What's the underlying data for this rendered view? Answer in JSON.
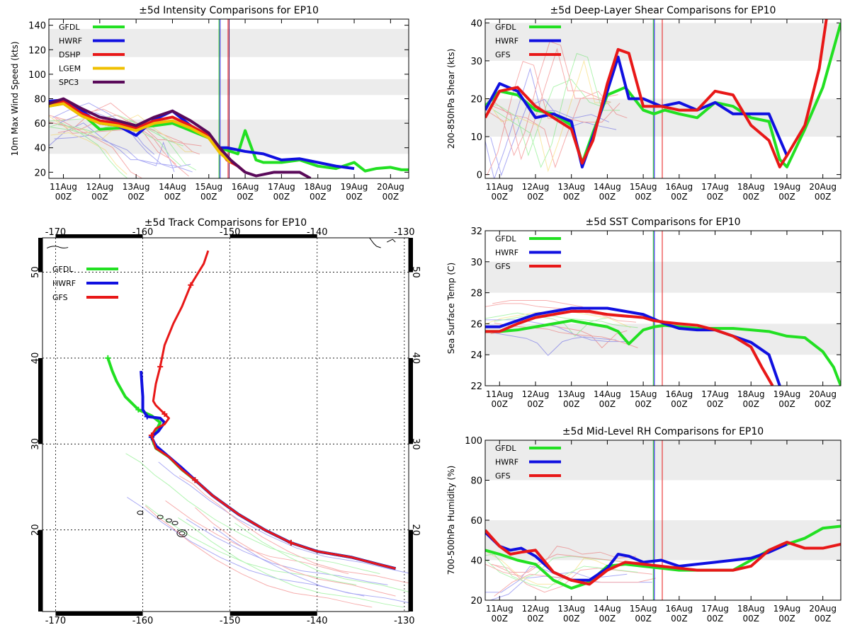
{
  "colors": {
    "GFDL": "#22e022",
    "HWRF": "#1010e0",
    "DSHP": "#e81818",
    "GFS": "#e81818",
    "LGEM": "#f0c000",
    "SPC3": "#5a0a5a",
    "band": "#ececec"
  },
  "date_ticks": [
    "11Aug",
    "12Aug",
    "13Aug",
    "14Aug",
    "15Aug",
    "16Aug",
    "17Aug",
    "18Aug",
    "19Aug",
    "20Aug"
  ],
  "hour_label": "00Z",
  "chart_data": [
    {
      "id": "intensity",
      "type": "line",
      "title": "±5d Intensity Comparisons for EP10",
      "ylabel": "10m Max Wind Speed (kts)",
      "xlim": [
        10.6,
        20.5
      ],
      "ylim": [
        15,
        145
      ],
      "yticks": [
        20,
        40,
        60,
        80,
        100,
        120,
        140
      ],
      "bands": [
        [
          35,
          63
        ],
        [
          83,
          96
        ],
        [
          114,
          137
        ]
      ],
      "vlines": [
        {
          "x": 15.28,
          "color": "#22c022"
        },
        {
          "x": 15.31,
          "color": "#1010e0"
        },
        {
          "x": 15.53,
          "color": "#e81818"
        },
        {
          "x": 15.56,
          "color": "#5a0a5a"
        }
      ],
      "legend": [
        "GFDL",
        "HWRF",
        "DSHP",
        "LGEM",
        "SPC3"
      ],
      "series": [
        {
          "name": "GFDL",
          "x": [
            10.6,
            11,
            11.5,
            12,
            12.5,
            13,
            13.5,
            14,
            14.5,
            15,
            15.3,
            15.5,
            15.8,
            16,
            16.3,
            16.5,
            17,
            17.5,
            18,
            18.5,
            19,
            19.3,
            19.6,
            20,
            20.3,
            20.5
          ],
          "y": [
            74,
            76,
            68,
            55,
            56,
            57,
            58,
            60,
            54,
            48,
            40,
            38,
            35,
            54,
            30,
            28,
            28,
            30,
            25,
            23,
            28,
            21,
            23,
            24,
            22,
            22
          ]
        },
        {
          "name": "HWRF",
          "x": [
            10.6,
            11,
            11.5,
            12,
            12.5,
            13,
            13.5,
            14,
            14.5,
            15,
            15.3,
            15.5,
            16,
            16.5,
            17,
            17.5,
            18,
            18.5,
            19
          ],
          "y": [
            78,
            79,
            70,
            60,
            58,
            50,
            63,
            70,
            58,
            48,
            40,
            40,
            37,
            35,
            30,
            31,
            28,
            25,
            23
          ]
        },
        {
          "name": "DSHP",
          "x": [
            10.6,
            11,
            11.5,
            12,
            12.5,
            13,
            13.5,
            14,
            14.5,
            15,
            15.3,
            15.5,
            15.8,
            16
          ],
          "y": [
            75,
            78,
            68,
            62,
            60,
            56,
            62,
            65,
            58,
            50,
            38,
            30,
            25,
            20
          ]
        },
        {
          "name": "LGEM",
          "x": [
            10.6,
            11,
            11.5,
            12,
            12.5,
            13,
            13.5,
            14,
            14.5,
            15,
            15.3,
            15.6
          ],
          "y": [
            74,
            76,
            66,
            60,
            58,
            54,
            60,
            62,
            56,
            48,
            36,
            28
          ]
        },
        {
          "name": "SPC3",
          "x": [
            10.6,
            11,
            11.5,
            12,
            12.5,
            13,
            13.5,
            14,
            14.5,
            15,
            15.3,
            15.6,
            16,
            16.3,
            16.8,
            17,
            17.5,
            17.8
          ],
          "y": [
            76,
            80,
            72,
            65,
            62,
            58,
            65,
            70,
            62,
            52,
            40,
            30,
            20,
            17,
            20,
            20,
            20,
            15
          ]
        }
      ]
    },
    {
      "id": "shear",
      "type": "line",
      "title": "±5d Deep-Layer Shear Comparisons for EP10",
      "ylabel": "200-850hPa Shear (kts)",
      "xlim": [
        10.6,
        20.5
      ],
      "ylim": [
        -1,
        41
      ],
      "yticks": [
        0,
        10,
        20,
        30,
        40
      ],
      "bands": [
        [
          10,
          20
        ],
        [
          30,
          40
        ]
      ],
      "vlines": [
        {
          "x": 15.28,
          "color": "#22c022"
        },
        {
          "x": 15.31,
          "color": "#1010e0"
        },
        {
          "x": 15.53,
          "color": "#e81818"
        }
      ],
      "legend": [
        "GFDL",
        "HWRF",
        "GFS"
      ],
      "series": [
        {
          "name": "GFDL",
          "x": [
            10.6,
            11,
            11.5,
            12,
            12.5,
            13,
            13.3,
            13.6,
            14,
            14.5,
            15,
            15.3,
            15.6,
            16,
            16.5,
            17,
            17.5,
            18,
            18.5,
            18.8,
            19,
            19.5,
            20,
            20.5
          ],
          "y": [
            18,
            22,
            21,
            17,
            16,
            13,
            3,
            11,
            21,
            23,
            17,
            16,
            17,
            16,
            15,
            19,
            18,
            15,
            14,
            4,
            2,
            12,
            23,
            40
          ]
        },
        {
          "name": "HWRF",
          "x": [
            10.6,
            11,
            11.5,
            12,
            12.5,
            13,
            13.3,
            13.6,
            14,
            14.3,
            14.6,
            15,
            15.5,
            16,
            16.5,
            17,
            17.5,
            18,
            18.5,
            19
          ],
          "y": [
            17,
            24,
            22,
            15,
            16,
            14,
            2,
            10,
            22,
            31,
            20,
            20,
            18,
            19,
            17,
            19,
            16,
            16,
            16,
            5
          ]
        },
        {
          "name": "GFS",
          "x": [
            10.6,
            11,
            11.5,
            12,
            12.5,
            13,
            13.3,
            13.6,
            14,
            14.3,
            14.6,
            15,
            15.5,
            16,
            16.5,
            17,
            17.5,
            18,
            18.5,
            18.8,
            19,
            19.5,
            19.9,
            20.1
          ],
          "y": [
            15,
            22,
            23,
            18,
            15,
            12,
            3,
            9,
            24,
            33,
            32,
            18,
            18,
            17,
            17,
            22,
            21,
            13,
            9,
            2,
            5,
            13,
            28,
            41
          ]
        }
      ]
    },
    {
      "id": "track",
      "type": "line",
      "title": "±5d Track Comparisons for EP10",
      "xlim": [
        -171.5,
        -129.5
      ],
      "ylim": [
        10.5,
        54
      ],
      "xticks": [
        -170,
        -160,
        -150,
        -140,
        -130
      ],
      "yticks": [
        20,
        30,
        40,
        50
      ],
      "legend": [
        "GFDL",
        "HWRF",
        "GFS"
      ],
      "series": [
        {
          "name": "GFDL",
          "x": [
            -131,
            -133,
            -136,
            -140,
            -143,
            -146,
            -149,
            -152,
            -154,
            -155.5,
            -157,
            -158.5,
            -159,
            -158.5,
            -158,
            -159,
            -160.5,
            -162,
            -163,
            -163.5,
            -164
          ],
          "y": [
            15.5,
            16,
            16.8,
            17.5,
            18.5,
            20,
            21.8,
            24,
            25.8,
            27,
            28.5,
            29.5,
            30.8,
            31.5,
            32.5,
            33.3,
            34,
            35.5,
            37.3,
            38.5,
            40
          ]
        },
        {
          "name": "HWRF",
          "x": [
            -131,
            -133,
            -136,
            -140,
            -143,
            -146,
            -149,
            -152,
            -154,
            -155.5,
            -157,
            -158.5,
            -159,
            -158.2,
            -157.5,
            -158,
            -159.5,
            -160,
            -160,
            -160.2
          ],
          "y": [
            15.5,
            16,
            16.8,
            17.5,
            18.5,
            20,
            21.8,
            24,
            25.8,
            27.2,
            28.5,
            29.8,
            30.8,
            31.5,
            32.5,
            33,
            33.2,
            34,
            35.5,
            38.5
          ]
        },
        {
          "name": "GFS",
          "x": [
            -131,
            -133,
            -136,
            -140,
            -143,
            -146,
            -149,
            -152,
            -154,
            -155.5,
            -157,
            -158.5,
            -159,
            -158.5,
            -157.5,
            -157,
            -157.5,
            -158.5,
            -158.8,
            -158.5,
            -158,
            -157.5,
            -156.5,
            -155.5,
            -154.5,
            -153,
            -152.5
          ],
          "y": [
            15.5,
            16,
            16.8,
            17.5,
            18.5,
            20,
            21.8,
            24,
            25.8,
            27,
            28.5,
            29.5,
            31,
            31.8,
            32.3,
            33,
            33.5,
            34.5,
            35,
            37,
            39,
            41.5,
            44,
            46,
            48.5,
            51,
            52.5
          ]
        }
      ]
    },
    {
      "id": "sst",
      "type": "line",
      "title": "±5d SST Comparisons for EP10",
      "ylabel": "Sea Surface Temp (C)",
      "xlim": [
        10.6,
        20.5
      ],
      "ylim": [
        22,
        32
      ],
      "yticks": [
        22,
        24,
        26,
        28,
        30,
        32
      ],
      "bands": [
        [
          24,
          26
        ],
        [
          28,
          30
        ]
      ],
      "vlines": [
        {
          "x": 15.28,
          "color": "#22c022"
        },
        {
          "x": 15.31,
          "color": "#1010e0"
        },
        {
          "x": 15.53,
          "color": "#e81818"
        }
      ],
      "legend": [
        "GFDL",
        "HWRF",
        "GFS"
      ],
      "series": [
        {
          "name": "GFDL",
          "x": [
            10.6,
            11,
            11.5,
            12,
            12.5,
            13,
            13.5,
            14,
            14.3,
            14.6,
            15,
            15.3,
            15.6,
            16,
            16.5,
            17,
            17.5,
            18,
            18.5,
            19,
            19.5,
            20,
            20.3,
            20.5
          ],
          "y": [
            25.5,
            25.5,
            25.6,
            25.8,
            26,
            26.2,
            26,
            25.8,
            25.5,
            24.7,
            25.6,
            25.8,
            25.9,
            25.8,
            25.7,
            25.7,
            25.7,
            25.6,
            25.5,
            25.2,
            25.1,
            24.2,
            23.2,
            22
          ]
        },
        {
          "name": "HWRF",
          "x": [
            10.6,
            11,
            11.5,
            12,
            12.5,
            13,
            13.5,
            14,
            14.5,
            15,
            15.3,
            15.6,
            16,
            16.5,
            17,
            17.5,
            18,
            18.5,
            18.8
          ],
          "y": [
            25.8,
            25.8,
            26.2,
            26.6,
            26.8,
            27,
            27,
            27,
            26.8,
            26.6,
            26.3,
            26,
            25.7,
            25.6,
            25.6,
            25.2,
            24.8,
            24,
            22
          ]
        },
        {
          "name": "GFS",
          "x": [
            10.6,
            11,
            11.5,
            12,
            12.5,
            13,
            13.5,
            14,
            14.5,
            15,
            15.3,
            15.6,
            16,
            16.5,
            17,
            17.5,
            18,
            18.3,
            18.6
          ],
          "y": [
            25.5,
            25.5,
            26,
            26.4,
            26.6,
            26.8,
            26.8,
            26.6,
            26.5,
            26.4,
            26.2,
            26.1,
            26,
            25.9,
            25.6,
            25.2,
            24.5,
            23.2,
            22
          ]
        }
      ]
    },
    {
      "id": "rh",
      "type": "line",
      "title": "±5d Mid-Level RH Comparisons for EP10",
      "ylabel": "700-500hPa Humidity (%)",
      "xlim": [
        10.6,
        20.5
      ],
      "ylim": [
        20,
        100
      ],
      "yticks": [
        20,
        40,
        60,
        80,
        100
      ],
      "bands": [
        [
          40,
          60
        ],
        [
          80,
          100
        ]
      ],
      "vlines": [
        {
          "x": 15.28,
          "color": "#22c022"
        },
        {
          "x": 15.31,
          "color": "#1010e0"
        },
        {
          "x": 15.53,
          "color": "#e81818"
        }
      ],
      "legend": [
        "GFDL",
        "HWRF",
        "GFS"
      ],
      "series": [
        {
          "name": "GFDL",
          "x": [
            10.6,
            11,
            11.5,
            12,
            12.5,
            13,
            13.5,
            14,
            14.5,
            15,
            15.5,
            16,
            16.5,
            17,
            17.5,
            18,
            18.5,
            19,
            19.5,
            20,
            20.5
          ],
          "y": [
            45,
            43,
            40,
            38,
            30,
            26,
            29,
            37,
            38,
            37,
            36,
            35,
            35,
            35,
            35,
            40,
            45,
            48,
            51,
            56,
            57
          ]
        },
        {
          "name": "HWRF",
          "x": [
            10.6,
            11,
            11.3,
            11.6,
            12,
            12.5,
            13,
            13.5,
            14,
            14.3,
            14.6,
            15,
            15.5,
            16,
            16.5,
            17,
            17.5,
            18,
            18.5,
            19
          ],
          "y": [
            54,
            47,
            45,
            46,
            42,
            34,
            30,
            30,
            36,
            43,
            42,
            39,
            40,
            37,
            38,
            39,
            40,
            41,
            44,
            48
          ]
        },
        {
          "name": "GFS",
          "x": [
            10.6,
            11,
            11.3,
            11.6,
            12,
            12.5,
            13,
            13.5,
            14,
            14.5,
            15,
            15.5,
            16,
            16.5,
            17,
            17.5,
            18,
            18.5,
            19,
            19.5,
            20,
            20.5
          ],
          "y": [
            55,
            47,
            43,
            44,
            45,
            34,
            30,
            28,
            35,
            39,
            38,
            37,
            36,
            35,
            35,
            35,
            37,
            45,
            49,
            46,
            46,
            48
          ]
        }
      ]
    }
  ]
}
